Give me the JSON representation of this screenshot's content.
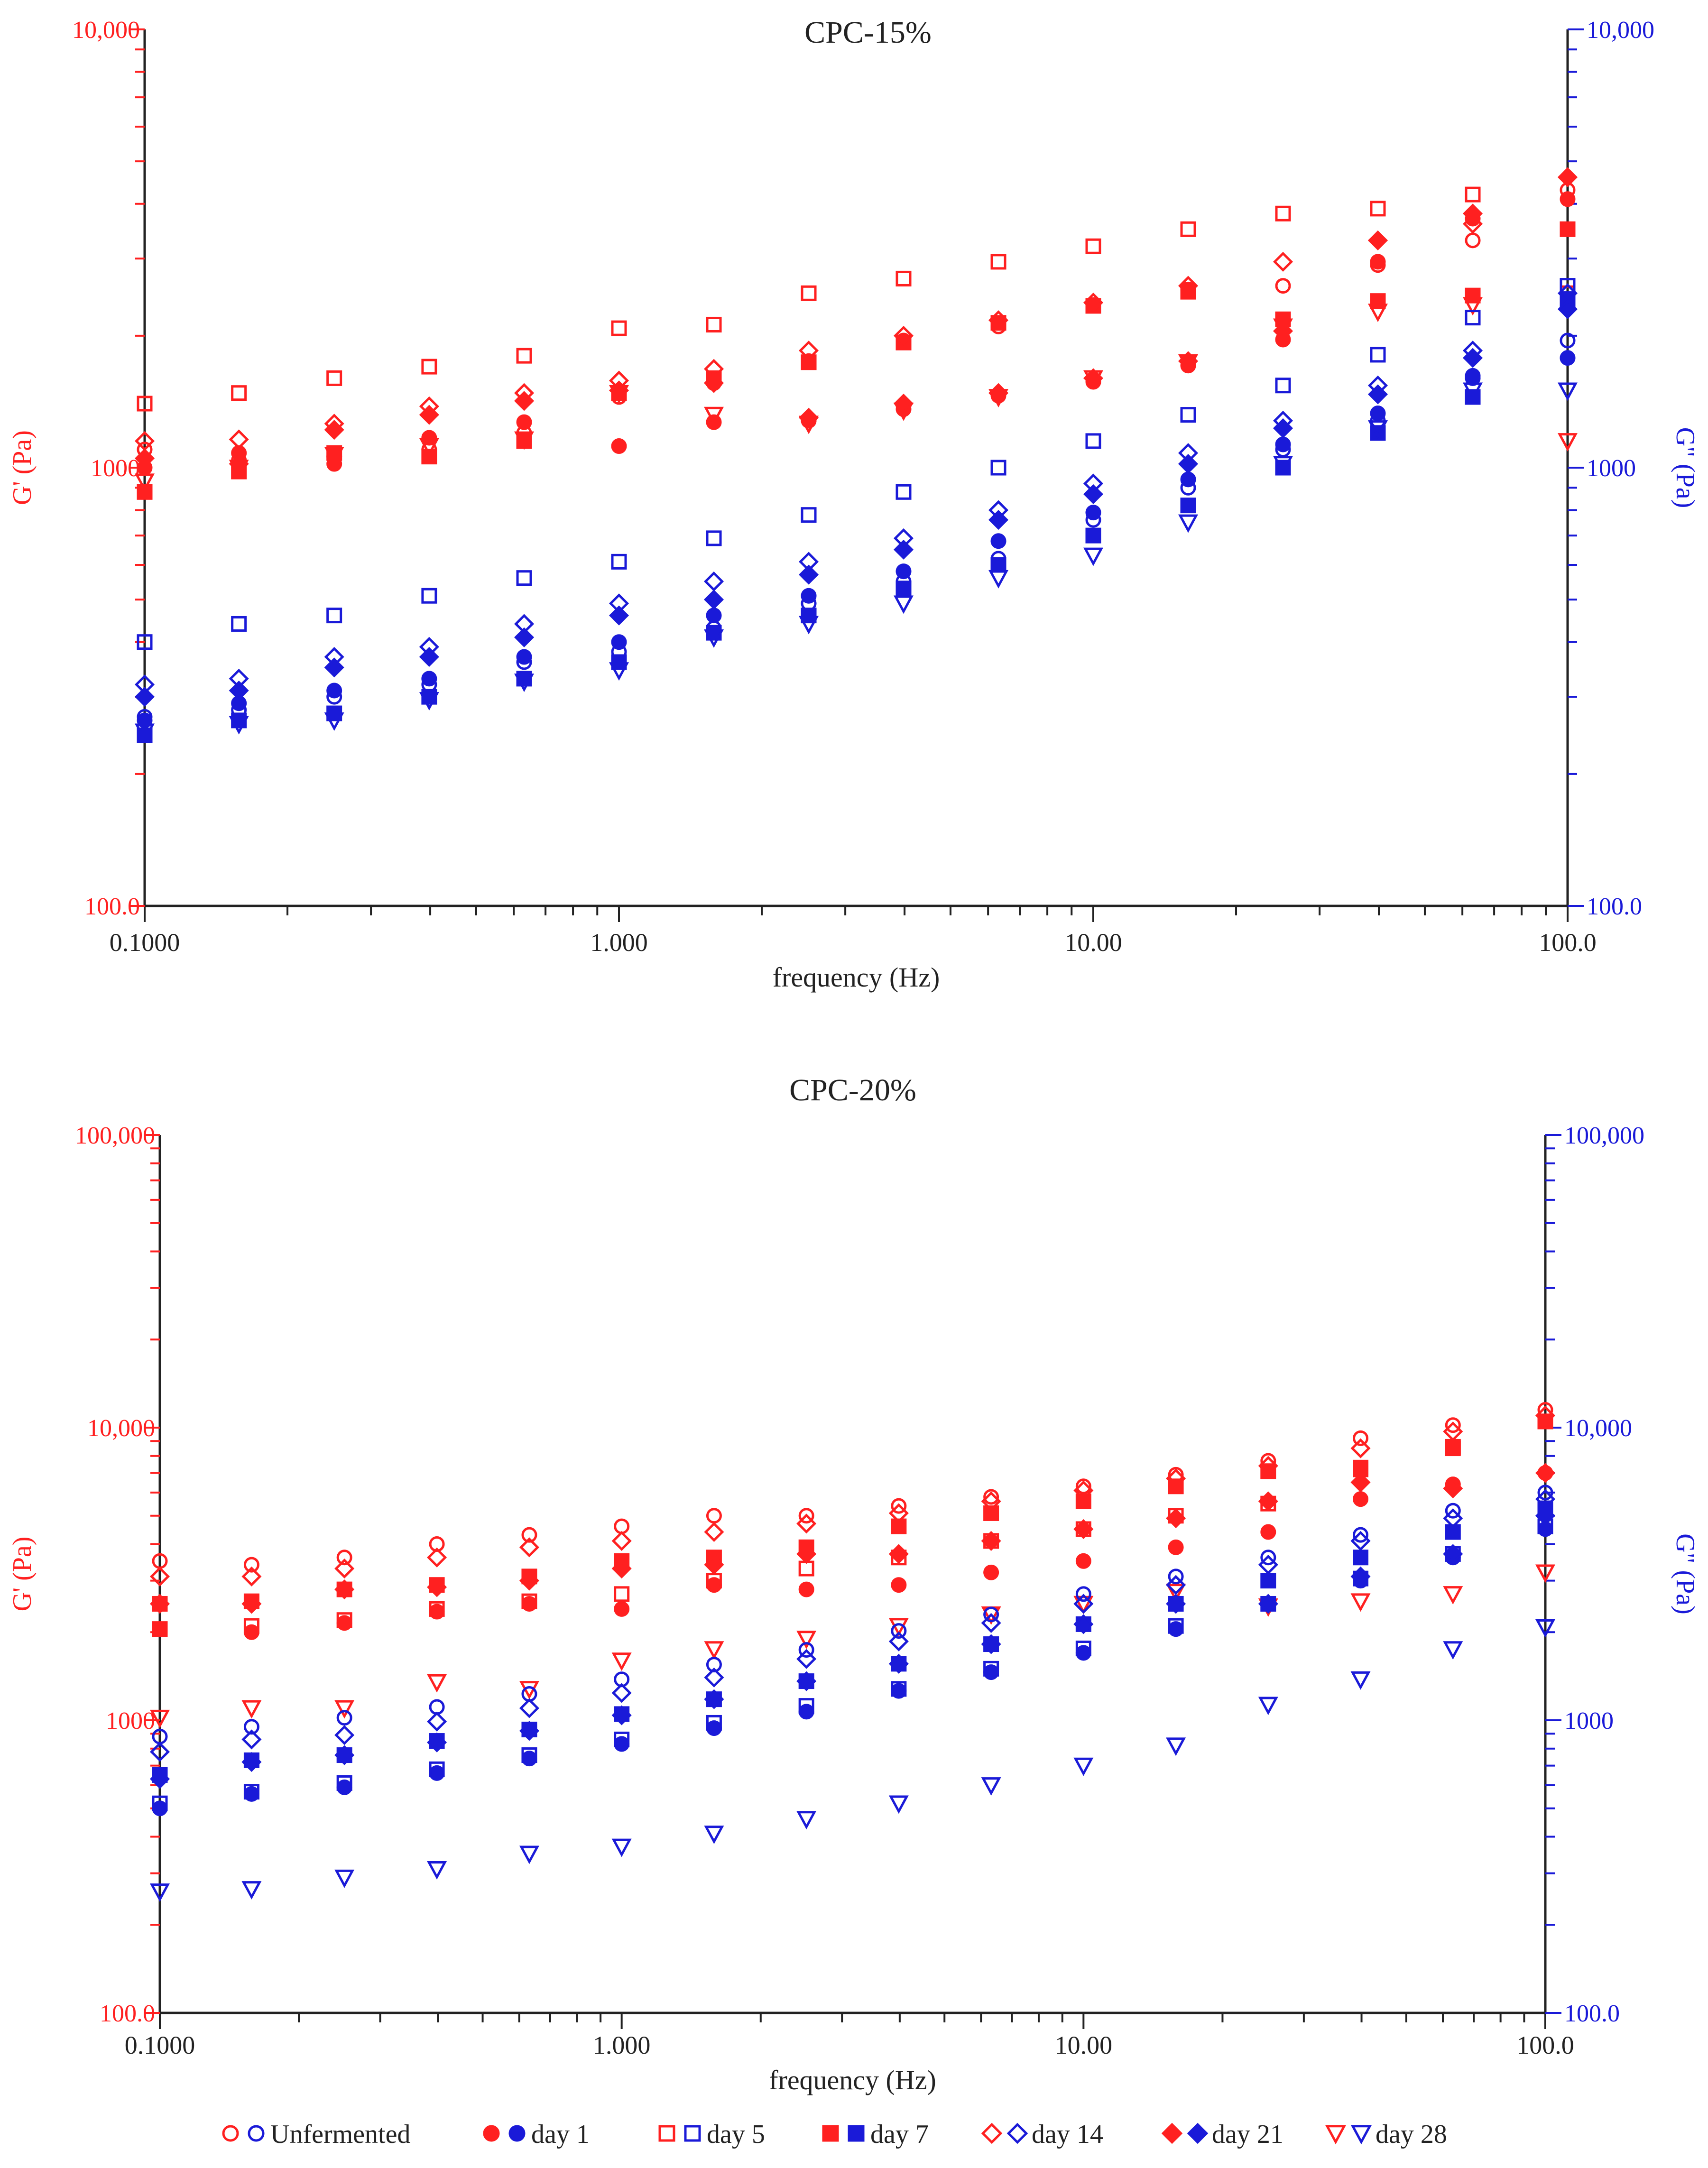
{
  "figure": {
    "colors": {
      "gprime": "#ff2020",
      "gdoubleprime": "#1a1ad8",
      "axis": "#222222"
    },
    "legend": [
      {
        "label": "Unfermented",
        "marker": "circle-open"
      },
      {
        "label": "day 1",
        "marker": "circle-filled"
      },
      {
        "label": "day 5",
        "marker": "square-open"
      },
      {
        "label": "day 7",
        "marker": "square-filled"
      },
      {
        "label": "day 14",
        "marker": "diamond-open"
      },
      {
        "label": "day 21",
        "marker": "diamond-filled"
      },
      {
        "label": "day 28",
        "marker": "triangle-open"
      }
    ]
  },
  "chart_data": [
    {
      "type": "scatter",
      "title": "CPC-15%",
      "xlabel": "frequency (Hz)",
      "ylabel_left": "G' (Pa)",
      "ylabel_right": "G\" (Pa)",
      "x_scale": "log",
      "y_scale": "log",
      "xlim": [
        0.1,
        100
      ],
      "ylim": [
        100,
        10000
      ],
      "x_tick_labels": [
        "0.1000",
        "1.000",
        "10.00",
        "100.0"
      ],
      "y_left_tick_labels": [
        "100.0",
        "1000",
        "10,000"
      ],
      "y_right_tick_labels": [
        "100.0",
        "1000",
        "10,000"
      ],
      "x": [
        0.1,
        0.158,
        0.251,
        0.398,
        0.631,
        1.0,
        1.585,
        2.512,
        3.981,
        6.31,
        10.0,
        15.85,
        25.12,
        39.81,
        63.1,
        100.0
      ],
      "series": [
        {
          "name": "Unfermented G'",
          "modulus": "G'",
          "marker": "circle-open",
          "values": [
            1100,
            1040,
            1060,
            1100,
            1200,
            1450,
            1560,
            1750,
            1950,
            2100,
            2350,
            2550,
            2600,
            2900,
            3300,
            4300
          ]
        },
        {
          "name": "day 1 G'",
          "modulus": "G'",
          "marker": "circle-filled",
          "values": [
            1000,
            1080,
            1020,
            1170,
            1270,
            1120,
            1270,
            1280,
            1360,
            1460,
            1570,
            1710,
            1960,
            2950,
            3700,
            4100
          ]
        },
        {
          "name": "day 5 G'",
          "modulus": "G'",
          "marker": "square-open",
          "values": [
            1400,
            1480,
            1600,
            1700,
            1800,
            2080,
            2120,
            2500,
            2700,
            2950,
            3200,
            3500,
            3800,
            3900,
            4200,
            2500
          ]
        },
        {
          "name": "day 7 G'",
          "modulus": "G'",
          "marker": "square-filled",
          "values": [
            880,
            980,
            1080,
            1060,
            1150,
            1480,
            1600,
            1740,
            1930,
            2140,
            2340,
            2520,
            2180,
            2400,
            2470,
            3500
          ]
        },
        {
          "name": "day 14 G'",
          "modulus": "G'",
          "marker": "diamond-open",
          "values": [
            1150,
            1160,
            1260,
            1380,
            1480,
            1580,
            1680,
            1850,
            2000,
            2170,
            2380,
            2600,
            2950,
            3300,
            3600,
            4600
          ]
        },
        {
          "name": "day 21 G'",
          "modulus": "G'",
          "marker": "diamond-filled",
          "values": [
            1050,
            1020,
            1220,
            1320,
            1420,
            1500,
            1560,
            1300,
            1400,
            1480,
            1600,
            1750,
            2050,
            3300,
            3800,
            4600
          ]
        },
        {
          "name": "day 28 G'",
          "modulus": "G'",
          "marker": "triangle-open",
          "values": [
            930,
            1000,
            1070,
            1120,
            1160,
            1480,
            1320,
            1260,
            1350,
            1450,
            1600,
            1740,
            2100,
            2270,
            2350,
            1150
          ]
        },
        {
          "name": "Unfermented G\"",
          "modulus": "G\"",
          "marker": "circle-open",
          "values": [
            270,
            280,
            300,
            320,
            360,
            380,
            430,
            490,
            550,
            620,
            760,
            900,
            1100,
            1280,
            1600,
            1950
          ]
        },
        {
          "name": "day 1 G\"",
          "modulus": "G\"",
          "marker": "circle-filled",
          "values": [
            265,
            290,
            310,
            330,
            370,
            400,
            460,
            510,
            580,
            680,
            790,
            940,
            1130,
            1330,
            1620,
            1780
          ]
        },
        {
          "name": "day 5 G\"",
          "modulus": "G\"",
          "marker": "square-open",
          "values": [
            400,
            440,
            460,
            510,
            560,
            610,
            690,
            780,
            880,
            1000,
            1150,
            1320,
            1540,
            1810,
            2200,
            2600
          ]
        },
        {
          "name": "day 7 G\"",
          "modulus": "G\"",
          "marker": "square-filled",
          "values": [
            245,
            265,
            275,
            300,
            330,
            360,
            420,
            460,
            530,
            600,
            700,
            820,
            1000,
            1200,
            1450,
            2400
          ]
        },
        {
          "name": "day 14 G\"",
          "modulus": "G\"",
          "marker": "diamond-open",
          "values": [
            320,
            330,
            370,
            390,
            440,
            490,
            550,
            610,
            690,
            800,
            920,
            1080,
            1280,
            1540,
            1850,
            2500
          ]
        },
        {
          "name": "day 21 G\"",
          "modulus": "G\"",
          "marker": "diamond-filled",
          "values": [
            300,
            310,
            350,
            370,
            410,
            460,
            500,
            570,
            650,
            760,
            870,
            1020,
            1230,
            1470,
            1780,
            2300
          ]
        },
        {
          "name": "day 28 G\"",
          "modulus": "G\"",
          "marker": "triangle-open",
          "values": [
            250,
            260,
            265,
            295,
            325,
            345,
            410,
            440,
            490,
            560,
            630,
            750,
            1020,
            1230,
            1500,
            1500
          ]
        }
      ]
    },
    {
      "type": "scatter",
      "title": "CPC-20%",
      "xlabel": "frequency (Hz)",
      "ylabel_left": "G' (Pa)",
      "ylabel_right": "G\" (Pa)",
      "x_scale": "log",
      "y_scale": "log",
      "xlim": [
        0.1,
        100
      ],
      "ylim": [
        100,
        100000
      ],
      "x_tick_labels": [
        "0.1000",
        "1.000",
        "10.00",
        "100.0"
      ],
      "y_left_tick_labels": [
        "100.0",
        "1000",
        "10,000",
        "100,000"
      ],
      "y_right_tick_labels": [
        "100.0",
        "1000",
        "10,000",
        "100,000"
      ],
      "x": [
        0.1,
        0.158,
        0.251,
        0.398,
        0.631,
        1.0,
        1.585,
        2.512,
        3.981,
        6.31,
        10.0,
        15.85,
        25.12,
        39.81,
        63.1,
        100.0
      ],
      "series": [
        {
          "name": "Unfermented G'",
          "modulus": "G'",
          "marker": "circle-open",
          "values": [
            3500,
            3400,
            3600,
            4000,
            4300,
            4600,
            5000,
            5000,
            5400,
            5800,
            6300,
            6900,
            7700,
            9200,
            10200,
            11500
          ]
        },
        {
          "name": "day 1 G'",
          "modulus": "G'",
          "marker": "circle-filled",
          "values": [
            2050,
            2000,
            2150,
            2350,
            2500,
            2400,
            2900,
            2800,
            2900,
            3200,
            3500,
            3900,
            4400,
            5700,
            6400,
            7000
          ]
        },
        {
          "name": "day 5 G'",
          "modulus": "G'",
          "marker": "square-open",
          "values": [
            2050,
            2100,
            2200,
            2400,
            2550,
            2700,
            3000,
            3300,
            3600,
            4100,
            4500,
            5000,
            5500,
            7200,
            8500,
            10500
          ]
        },
        {
          "name": "day 7 G'",
          "modulus": "G'",
          "marker": "square-filled",
          "values": [
            2500,
            2550,
            2800,
            2900,
            3100,
            3500,
            3600,
            3900,
            4600,
            5100,
            5600,
            6300,
            7100,
            7300,
            8600,
            10500
          ]
        },
        {
          "name": "day 14 G'",
          "modulus": "G'",
          "marker": "diamond-open",
          "values": [
            3100,
            3100,
            3300,
            3600,
            3900,
            4100,
            4400,
            4700,
            5100,
            5600,
            6100,
            6700,
            7400,
            8500,
            9700,
            11000
          ]
        },
        {
          "name": "day 21 G'",
          "modulus": "G'",
          "marker": "diamond-filled",
          "values": [
            2500,
            2500,
            2800,
            2850,
            3000,
            3300,
            3400,
            3700,
            3700,
            4100,
            4500,
            4900,
            5600,
            6500,
            6200,
            7000
          ]
        },
        {
          "name": "day 28 G'",
          "modulus": "G'",
          "marker": "triangle-open",
          "values": [
            1020,
            1100,
            1100,
            1350,
            1280,
            1600,
            1750,
            1900,
            2100,
            2300,
            2500,
            2750,
            2450,
            2550,
            2700,
            3200
          ]
        },
        {
          "name": "Unfermented G\"",
          "modulus": "G\"",
          "marker": "circle-open",
          "values": [
            880,
            950,
            1020,
            1110,
            1230,
            1380,
            1550,
            1740,
            2020,
            2300,
            2700,
            3100,
            3600,
            4300,
            5200,
            6000
          ]
        },
        {
          "name": "day 1 G\"",
          "modulus": "G\"",
          "marker": "circle-filled",
          "values": [
            500,
            560,
            590,
            660,
            740,
            830,
            940,
            1070,
            1260,
            1460,
            1700,
            2050,
            2500,
            3000,
            3600,
            4500
          ]
        },
        {
          "name": "day 5 G\"",
          "modulus": "G\"",
          "marker": "square-open",
          "values": [
            520,
            570,
            610,
            680,
            760,
            860,
            980,
            1120,
            1280,
            1500,
            1760,
            2100,
            2500,
            3050,
            3700,
            4600
          ]
        },
        {
          "name": "day 7 G\"",
          "modulus": "G\"",
          "marker": "square-filled",
          "values": [
            650,
            730,
            760,
            850,
            930,
            1050,
            1180,
            1360,
            1560,
            1820,
            2130,
            2500,
            3000,
            3600,
            4400,
            5300
          ]
        },
        {
          "name": "day 14 G\"",
          "modulus": "G\"",
          "marker": "diamond-open",
          "values": [
            780,
            860,
            890,
            990,
            1100,
            1240,
            1400,
            1620,
            1860,
            2150,
            2500,
            2900,
            3400,
            4100,
            4900,
            5700
          ]
        },
        {
          "name": "day 21 G\"",
          "modulus": "G\"",
          "marker": "diamond-filled",
          "values": [
            630,
            720,
            760,
            840,
            920,
            1040,
            1180,
            1360,
            1560,
            1820,
            2130,
            2500,
            2500,
            3100,
            3700,
            5000
          ]
        },
        {
          "name": "day 28 G\"",
          "modulus": "G\"",
          "marker": "triangle-open",
          "values": [
            260,
            265,
            290,
            310,
            350,
            370,
            410,
            460,
            520,
            600,
            700,
            820,
            1130,
            1380,
            1750,
            2080
          ]
        }
      ]
    }
  ]
}
